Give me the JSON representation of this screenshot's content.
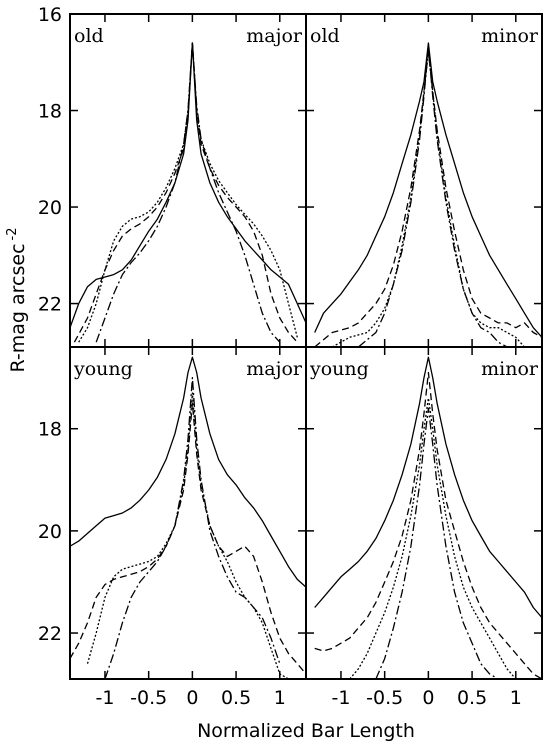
{
  "chart_data": {
    "type": "line",
    "layout": "2x2 grid of surface-brightness profile panels",
    "xlabel": "Normalized Bar Length",
    "ylabel": "R-mag arcsec",
    "ylabel_exponent": "-2",
    "xlim": [
      -1.4,
      1.3
    ],
    "x_ticks": [
      -1,
      -0.5,
      0,
      0.5,
      1
    ],
    "x_tick_labels": [
      "-1",
      "-0.5",
      "0",
      "0.5",
      "1"
    ],
    "y_inverted": true,
    "grid": false,
    "rows": [
      {
        "ylim": [
          16,
          22.9
        ],
        "y_ticks": [
          16,
          18,
          20,
          22
        ],
        "y_tick_labels": [
          "16",
          "18",
          "20",
          "22"
        ]
      },
      {
        "ylim": [
          16.4,
          22.9
        ],
        "y_ticks": [
          18,
          20,
          22
        ],
        "y_tick_labels": [
          "18",
          "20",
          "22"
        ]
      }
    ],
    "panels": [
      {
        "row": 0,
        "col": 0,
        "label_left": "old",
        "label_right": "major",
        "series": [
          {
            "x": [
              -1.4,
              -1.3,
              -1.2,
              -1.1,
              -1.0,
              -0.9,
              -0.8,
              -0.7,
              -0.6,
              -0.5,
              -0.4,
              -0.3,
              -0.2,
              -0.1,
              -0.05,
              0,
              0.05,
              0.1,
              0.2,
              0.3,
              0.4,
              0.5,
              0.6,
              0.7,
              0.8,
              0.9,
              1.0,
              1.1,
              1.2,
              1.3
            ],
            "y": [
              22.5,
              22.0,
              21.65,
              21.5,
              21.45,
              21.4,
              21.3,
              21.1,
              20.8,
              20.5,
              20.25,
              19.9,
              19.5,
              18.9,
              18.2,
              16.6,
              18.2,
              18.9,
              19.5,
              19.9,
              20.2,
              20.45,
              20.7,
              20.9,
              21.1,
              21.3,
              21.45,
              21.6,
              22.0,
              22.4
            ]
          },
          {
            "x": [
              -1.35,
              -1.2,
              -1.1,
              -1.0,
              -0.9,
              -0.8,
              -0.7,
              -0.6,
              -0.5,
              -0.4,
              -0.3,
              -0.2,
              -0.1,
              -0.05,
              0,
              0.05,
              0.1,
              0.2,
              0.3,
              0.4,
              0.5,
              0.6,
              0.7,
              0.8,
              0.9,
              1.0,
              1.1,
              1.2
            ],
            "y": [
              22.8,
              22.3,
              21.8,
              21.3,
              20.9,
              20.6,
              20.45,
              20.35,
              20.2,
              20.0,
              19.7,
              19.3,
              18.8,
              18.1,
              16.6,
              18.0,
              18.7,
              19.2,
              19.55,
              19.8,
              20.0,
              20.2,
              20.5,
              21.0,
              21.8,
              22.3,
              22.6,
              22.8
            ]
          },
          {
            "x": [
              -1.3,
              -1.2,
              -1.1,
              -1.0,
              -0.9,
              -0.8,
              -0.7,
              -0.6,
              -0.5,
              -0.4,
              -0.3,
              -0.2,
              -0.1,
              -0.05,
              0,
              0.05,
              0.1,
              0.2,
              0.3,
              0.4,
              0.5,
              0.6,
              0.7,
              0.8,
              0.9,
              1.0,
              1.1,
              1.2
            ],
            "y": [
              22.8,
              22.5,
              22.0,
              21.3,
              20.7,
              20.4,
              20.25,
              20.2,
              20.1,
              19.9,
              19.6,
              19.2,
              18.7,
              18.0,
              16.6,
              18.0,
              18.6,
              19.1,
              19.45,
              19.7,
              19.95,
              20.15,
              20.35,
              20.6,
              20.9,
              21.3,
              22.0,
              22.7
            ]
          },
          {
            "x": [
              -1.1,
              -1.0,
              -0.9,
              -0.8,
              -0.7,
              -0.6,
              -0.5,
              -0.4,
              -0.3,
              -0.2,
              -0.1,
              -0.05,
              0,
              0.05,
              0.1,
              0.2,
              0.3,
              0.4,
              0.5,
              0.6,
              0.7,
              0.8,
              0.9,
              1.0
            ],
            "y": [
              22.8,
              22.3,
              21.8,
              21.4,
              21.15,
              20.95,
              20.7,
              20.4,
              20.0,
              19.5,
              18.7,
              18.0,
              16.6,
              17.9,
              18.6,
              19.2,
              19.7,
              20.1,
              20.5,
              21.0,
              21.6,
              22.2,
              22.6,
              22.8
            ]
          }
        ]
      },
      {
        "row": 0,
        "col": 1,
        "label_left": "old",
        "label_right": "minor",
        "series": [
          {
            "x": [
              -1.3,
              -1.2,
              -1.1,
              -1.0,
              -0.9,
              -0.8,
              -0.7,
              -0.6,
              -0.5,
              -0.4,
              -0.3,
              -0.2,
              -0.1,
              -0.05,
              0,
              0.05,
              0.1,
              0.2,
              0.3,
              0.4,
              0.5,
              0.6,
              0.7,
              0.8,
              0.9,
              1.0,
              1.1,
              1.2,
              1.3
            ],
            "y": [
              22.6,
              22.2,
              22.0,
              21.8,
              21.55,
              21.3,
              21.0,
              20.6,
              20.2,
              19.7,
              19.1,
              18.5,
              17.8,
              17.4,
              16.6,
              17.4,
              17.8,
              18.5,
              19.1,
              19.7,
              20.2,
              20.6,
              21.0,
              21.3,
              21.6,
              21.9,
              22.2,
              22.5,
              22.7
            ]
          },
          {
            "x": [
              -1.3,
              -1.1,
              -0.9,
              -0.8,
              -0.7,
              -0.6,
              -0.5,
              -0.4,
              -0.3,
              -0.2,
              -0.1,
              -0.05,
              0,
              0.05,
              0.1,
              0.2,
              0.3,
              0.4,
              0.5,
              0.6,
              0.7,
              0.8,
              0.9,
              1.0,
              1.1,
              1.2,
              1.3
            ],
            "y": [
              22.9,
              22.6,
              22.5,
              22.4,
              22.2,
              22.0,
              21.7,
              21.2,
              20.5,
              19.6,
              18.4,
              17.6,
              16.7,
              17.6,
              18.4,
              19.6,
              20.5,
              21.3,
              21.9,
              22.2,
              22.3,
              22.4,
              22.4,
              22.5,
              22.4,
              22.6,
              22.7
            ]
          },
          {
            "x": [
              -1.1,
              -0.9,
              -0.7,
              -0.6,
              -0.5,
              -0.4,
              -0.3,
              -0.2,
              -0.1,
              -0.05,
              0,
              0.05,
              0.1,
              0.2,
              0.3,
              0.4,
              0.5,
              0.6,
              0.7,
              0.8,
              0.9,
              1.0,
              1.1
            ],
            "y": [
              22.9,
              22.7,
              22.6,
              22.4,
              22.1,
              21.6,
              20.8,
              19.8,
              18.5,
              17.6,
              16.8,
              17.6,
              18.5,
              19.8,
              20.8,
              21.7,
              22.2,
              22.4,
              22.5,
              22.5,
              22.6,
              22.7,
              22.9
            ]
          },
          {
            "x": [
              -0.8,
              -0.6,
              -0.5,
              -0.4,
              -0.3,
              -0.2,
              -0.1,
              -0.05,
              0,
              0.05,
              0.1,
              0.2,
              0.3,
              0.4,
              0.5,
              0.6,
              0.7,
              0.8,
              0.9
            ],
            "y": [
              22.9,
              22.6,
              22.2,
              21.6,
              20.9,
              19.9,
              18.6,
              17.7,
              16.7,
              17.7,
              18.6,
              19.9,
              20.9,
              21.7,
              22.2,
              22.5,
              22.6,
              22.8,
              22.9
            ]
          }
        ]
      },
      {
        "row": 1,
        "col": 0,
        "label_left": "young",
        "label_right": "major",
        "series": [
          {
            "x": [
              -1.4,
              -1.3,
              -1.2,
              -1.1,
              -1.0,
              -0.9,
              -0.8,
              -0.7,
              -0.6,
              -0.5,
              -0.4,
              -0.3,
              -0.2,
              -0.1,
              -0.05,
              0,
              0.05,
              0.1,
              0.2,
              0.3,
              0.4,
              0.5,
              0.6,
              0.7,
              0.8,
              0.9,
              1.0,
              1.1,
              1.2,
              1.3
            ],
            "y": [
              20.3,
              20.2,
              20.05,
              19.9,
              19.75,
              19.7,
              19.65,
              19.55,
              19.4,
              19.2,
              18.95,
              18.6,
              18.1,
              17.4,
              16.9,
              16.6,
              16.9,
              17.4,
              18.1,
              18.6,
              18.9,
              19.1,
              19.35,
              19.55,
              19.8,
              20.1,
              20.4,
              20.7,
              20.95,
              21.1
            ]
          },
          {
            "x": [
              -1.4,
              -1.3,
              -1.2,
              -1.1,
              -1.0,
              -0.9,
              -0.8,
              -0.7,
              -0.6,
              -0.5,
              -0.4,
              -0.3,
              -0.2,
              -0.1,
              -0.05,
              0,
              0.05,
              0.1,
              0.2,
              0.3,
              0.4,
              0.5,
              0.6,
              0.7,
              0.8,
              0.9,
              1.0,
              1.1,
              1.2,
              1.3
            ],
            "y": [
              22.5,
              22.2,
              21.8,
              21.3,
              21.05,
              20.95,
              20.9,
              20.85,
              20.8,
              20.7,
              20.55,
              20.3,
              19.9,
              19.2,
              18.5,
              17.5,
              18.5,
              19.2,
              19.9,
              20.3,
              20.5,
              20.4,
              20.3,
              20.5,
              21.0,
              21.6,
              22.1,
              22.4,
              22.6,
              22.8
            ]
          },
          {
            "x": [
              -1.2,
              -1.1,
              -1.0,
              -0.9,
              -0.8,
              -0.7,
              -0.6,
              -0.5,
              -0.4,
              -0.3,
              -0.2,
              -0.1,
              -0.05,
              0,
              0.05,
              0.1,
              0.2,
              0.3,
              0.4,
              0.5,
              0.6,
              0.7,
              0.8,
              0.9,
              1.0,
              1.1,
              1.2
            ],
            "y": [
              22.6,
              22.0,
              21.3,
              20.9,
              20.75,
              20.7,
              20.65,
              20.6,
              20.5,
              20.25,
              19.9,
              19.1,
              18.4,
              17.3,
              18.4,
              19.1,
              19.9,
              20.3,
              20.6,
              21.0,
              21.3,
              21.5,
              21.8,
              22.3,
              22.8,
              22.9,
              22.9
            ]
          },
          {
            "x": [
              -1.0,
              -0.9,
              -0.8,
              -0.7,
              -0.6,
              -0.5,
              -0.4,
              -0.3,
              -0.2,
              -0.1,
              -0.05,
              0,
              0.05,
              0.1,
              0.2,
              0.3,
              0.4,
              0.5,
              0.6,
              0.7,
              0.8,
              0.9,
              1.0
            ],
            "y": [
              22.9,
              22.4,
              21.8,
              21.3,
              21.0,
              20.8,
              20.6,
              20.3,
              19.9,
              19.0,
              18.2,
              17.0,
              18.2,
              19.0,
              20.0,
              20.5,
              20.9,
              21.2,
              21.3,
              21.5,
              21.7,
              22.1,
              22.6
            ]
          }
        ]
      },
      {
        "row": 1,
        "col": 1,
        "label_left": "young",
        "label_right": "minor",
        "series": [
          {
            "x": [
              -1.3,
              -1.2,
              -1.1,
              -1.0,
              -0.9,
              -0.8,
              -0.7,
              -0.6,
              -0.5,
              -0.4,
              -0.3,
              -0.2,
              -0.1,
              -0.05,
              0,
              0.05,
              0.1,
              0.2,
              0.3,
              0.4,
              0.5,
              0.6,
              0.7,
              0.8,
              0.9,
              1.0,
              1.1,
              1.2,
              1.3
            ],
            "y": [
              21.5,
              21.3,
              21.1,
              20.9,
              20.75,
              20.6,
              20.4,
              20.15,
              19.8,
              19.4,
              18.9,
              18.3,
              17.5,
              17.0,
              16.6,
              17.0,
              17.5,
              18.3,
              18.9,
              19.4,
              19.8,
              20.1,
              20.4,
              20.6,
              20.8,
              21.0,
              21.2,
              21.5,
              21.7
            ]
          },
          {
            "x": [
              -1.3,
              -1.2,
              -1.1,
              -1.0,
              -0.9,
              -0.8,
              -0.7,
              -0.6,
              -0.5,
              -0.4,
              -0.3,
              -0.2,
              -0.1,
              -0.05,
              0,
              0.05,
              0.1,
              0.2,
              0.3,
              0.4,
              0.5,
              0.6,
              0.7,
              0.8,
              0.9,
              1.0,
              1.1,
              1.2,
              1.3
            ],
            "y": [
              22.3,
              22.35,
              22.3,
              22.2,
              22.1,
              21.9,
              21.7,
              21.4,
              21.0,
              20.6,
              20.1,
              19.4,
              18.4,
              17.7,
              16.9,
              17.7,
              18.4,
              19.4,
              20.0,
              20.6,
              21.1,
              21.5,
              21.8,
              22.0,
              22.2,
              22.4,
              22.6,
              22.8,
              22.9
            ]
          },
          {
            "x": [
              -0.9,
              -0.8,
              -0.7,
              -0.6,
              -0.5,
              -0.4,
              -0.3,
              -0.2,
              -0.1,
              -0.05,
              0,
              0.05,
              0.1,
              0.2,
              0.3,
              0.4,
              0.5,
              0.6,
              0.7,
              0.8,
              0.9,
              1.0
            ],
            "y": [
              22.9,
              22.7,
              22.4,
              22.0,
              21.6,
              21.1,
              20.5,
              19.7,
              18.7,
              18.0,
              17.4,
              18.0,
              18.7,
              19.7,
              20.5,
              21.1,
              21.5,
              21.8,
              22.1,
              22.4,
              22.7,
              22.9
            ]
          },
          {
            "x": [
              -0.6,
              -0.5,
              -0.4,
              -0.3,
              -0.2,
              -0.1,
              -0.05,
              0,
              0.05,
              0.1,
              0.2,
              0.3,
              0.4,
              0.5,
              0.6,
              0.7,
              0.8
            ],
            "y": [
              22.9,
              22.5,
              21.9,
              21.2,
              20.3,
              19.1,
              18.3,
              17.6,
              18.3,
              19.1,
              20.3,
              21.2,
              21.8,
              22.2,
              22.6,
              22.8,
              22.9
            ]
          }
        ]
      }
    ]
  }
}
